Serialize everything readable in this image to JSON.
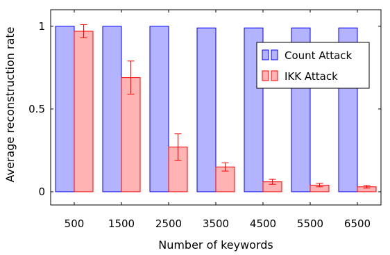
{
  "chart_data": {
    "type": "bar",
    "title": "",
    "xlabel": "Number of keywords",
    "ylabel": "Average reconstruction rate",
    "categories": [
      "500",
      "1500",
      "2500",
      "3500",
      "4500",
      "5500",
      "6500"
    ],
    "ylim": [
      -0.08,
      1.1
    ],
    "yticks": [
      0,
      0.5,
      1
    ],
    "ytick_labels": [
      "0",
      "0.5",
      "1"
    ],
    "grid": false,
    "legend_position": "top-right",
    "series": [
      {
        "name": "Count Attack",
        "values": [
          1.0,
          1.0,
          1.0,
          0.99,
          0.99,
          0.99,
          0.99
        ],
        "fill": "#b3b3ff",
        "stroke": "#0000ff"
      },
      {
        "name": "IKK Attack",
        "values": [
          0.97,
          0.69,
          0.27,
          0.15,
          0.06,
          0.04,
          0.03
        ],
        "errors": [
          0.04,
          0.1,
          0.08,
          0.025,
          0.015,
          0.01,
          0.008
        ],
        "fill": "#ffb3b3",
        "stroke": "#ff0000"
      }
    ]
  }
}
